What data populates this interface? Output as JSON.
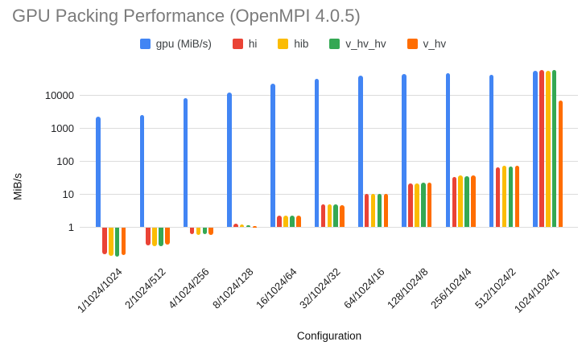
{
  "chart_data": {
    "type": "bar",
    "title": "GPU Packing Performance (OpenMPI 4.0.5)",
    "xlabel": "Configuration",
    "ylabel": "MiB/s",
    "y_scale": "log",
    "yticks": [
      1,
      10,
      100,
      1000,
      10000
    ],
    "ylim": [
      0.1,
      70000
    ],
    "grid": true,
    "legend_position": "top",
    "categories": [
      "1/1024/1024",
      "2/1024/512",
      "4/1024/256",
      "8/1024/128",
      "16/1024/64",
      "32/1024/32",
      "64/1024/16",
      "128/1024/8",
      "256/1024/4",
      "512/1024/2",
      "1024/1024/1"
    ],
    "series": [
      {
        "name": "gpu (MiB/s)",
        "color": "#4285F4",
        "values": [
          2300,
          2500,
          8300,
          12500,
          23000,
          32000,
          40000,
          44000,
          48000,
          43000,
          55000
        ]
      },
      {
        "name": "hi",
        "color": "#EA4335",
        "values": [
          0.15,
          0.29,
          0.63,
          1.3,
          2.3,
          5.0,
          10.1,
          21,
          33,
          66,
          60000
        ]
      },
      {
        "name": "hib",
        "color": "#FBBC04",
        "values": [
          0.135,
          0.26,
          0.6,
          1.2,
          2.25,
          4.9,
          10.1,
          21,
          38,
          74,
          55000
        ]
      },
      {
        "name": "v_hv_hv",
        "color": "#34A853",
        "values": [
          0.13,
          0.27,
          0.62,
          1.16,
          2.2,
          4.9,
          10.1,
          22,
          36,
          70,
          60000
        ]
      },
      {
        "name": "v_hv",
        "color": "#FF6D01",
        "values": [
          0.148,
          0.3,
          0.6,
          1.1,
          2.3,
          4.8,
          10.4,
          22,
          38,
          74,
          6800
        ]
      }
    ]
  }
}
